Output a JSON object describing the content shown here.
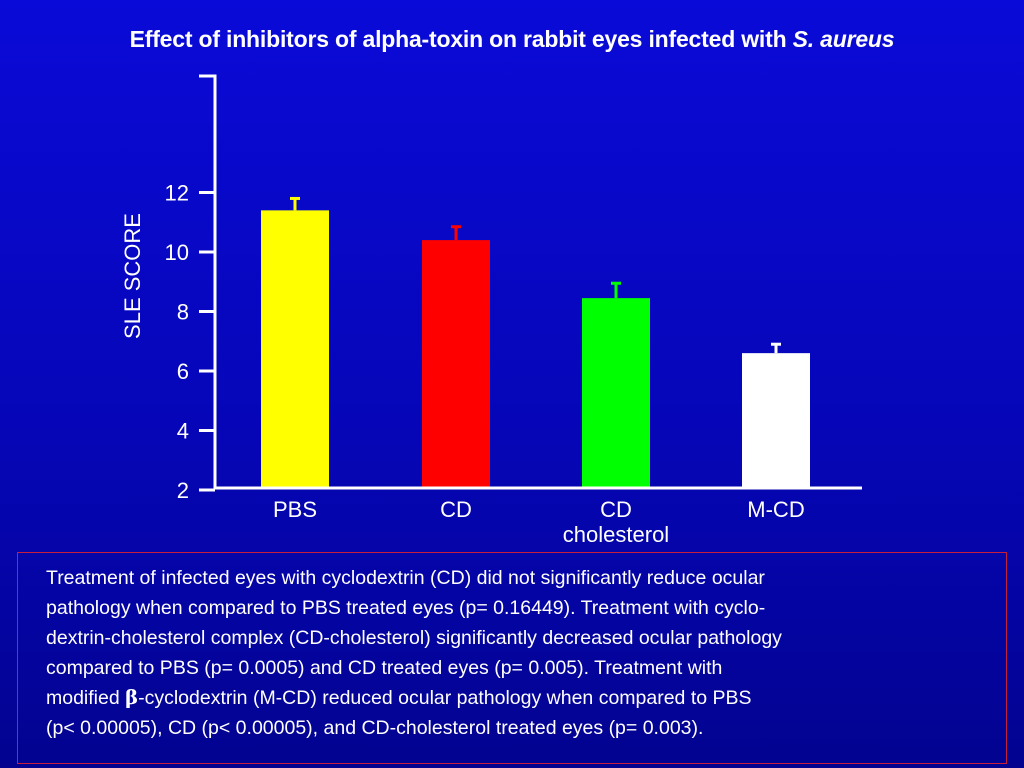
{
  "title": {
    "main": "Effect of inhibitors of alpha-toxin on rabbit eyes infected with ",
    "organism": "S. aureus"
  },
  "chart_data": {
    "type": "bar",
    "title": "Effect of inhibitors of alpha-toxin on rabbit eyes infected with S. aureus",
    "ylabel": "SLE SCORE",
    "xlabel": "",
    "ylim": [
      0,
      14
    ],
    "yticks": [
      "2",
      "4",
      "6",
      "8",
      "10",
      "12"
    ],
    "grid": false,
    "categories": [
      "PBS",
      "CD",
      "CD cholesterol",
      "M-CD"
    ],
    "category_lines": [
      [
        "PBS"
      ],
      [
        "CD"
      ],
      [
        "CD",
        "cholesterol"
      ],
      [
        "M-CD"
      ]
    ],
    "values": [
      11.4,
      10.4,
      8.45,
      6.6
    ],
    "errors": [
      0.4,
      0.45,
      0.5,
      0.3
    ],
    "bar_colors": [
      "#ffff00",
      "#ff0000",
      "#00ff00",
      "#ffffff"
    ]
  },
  "note": {
    "lines": [
      "Treatment of infected eyes with cyclodextrin (CD) did not significantly reduce ocular",
      "pathology when compared to PBS treated eyes (p= 0.16449). Treatment with cyclo-",
      "dextrin-cholesterol complex (CD-cholesterol) significantly decreased ocular pathology",
      "compared to PBS (p= 0.0005) and CD treated eyes (p= 0.005). Treatment with"
    ],
    "line5_before": "modified ",
    "line5_beta": "β",
    "line5_after": "-cyclodextrin (M-CD) reduced ocular pathology when compared to PBS",
    "line6": " (p< 0.00005), CD (p< 0.00005), and CD-cholesterol treated eyes (p= 0.003)."
  },
  "colors": {
    "background_top": "#0a0ad8",
    "background_bottom": "#030390",
    "axis": "#ffffff",
    "note_border": "#c81e3c"
  }
}
